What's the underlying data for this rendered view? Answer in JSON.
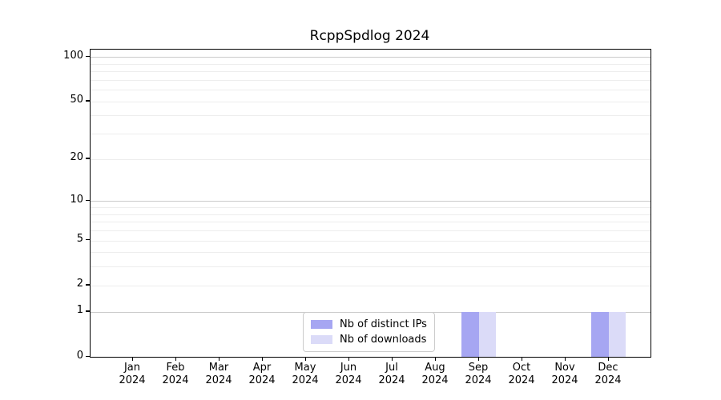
{
  "title": "RcppSpdlog 2024",
  "legend": {
    "items": [
      {
        "label": "Nb of distinct IPs",
        "color": "#a6a6f2"
      },
      {
        "label": "Nb of downloads",
        "color": "#dbdbf8"
      }
    ]
  },
  "axes": {
    "y_scale": "log1p",
    "y_tick_values": [
      0,
      1,
      2,
      5,
      10,
      20,
      50,
      100
    ],
    "y_tick_labels": [
      "0",
      "1",
      "2",
      "5",
      "10",
      "20",
      "50",
      "100"
    ],
    "y_grid_major_values": [
      1,
      10,
      100
    ],
    "y_grid_minor_values": [
      2,
      3,
      4,
      5,
      6,
      7,
      8,
      9,
      20,
      30,
      40,
      50,
      60,
      70,
      80,
      90
    ],
    "x_ticks": [
      {
        "line1": "Jan",
        "line2": "2024"
      },
      {
        "line1": "Feb",
        "line2": "2024"
      },
      {
        "line1": "Mar",
        "line2": "2024"
      },
      {
        "line1": "Apr",
        "line2": "2024"
      },
      {
        "line1": "May",
        "line2": "2024"
      },
      {
        "line1": "Jun",
        "line2": "2024"
      },
      {
        "line1": "Jul",
        "line2": "2024"
      },
      {
        "line1": "Aug",
        "line2": "2024"
      },
      {
        "line1": "Sep",
        "line2": "2024"
      },
      {
        "line1": "Oct",
        "line2": "2024"
      },
      {
        "line1": "Nov",
        "line2": "2024"
      },
      {
        "line1": "Dec",
        "line2": "2024"
      }
    ]
  },
  "colors": {
    "grid_major": "#cbcbcb",
    "grid_minor": "#ededed",
    "spine": "#000000",
    "background": "#ffffff"
  },
  "chart_data": {
    "type": "bar",
    "title": "RcppSpdlog 2024",
    "categories": [
      "Jan 2024",
      "Feb 2024",
      "Mar 2024",
      "Apr 2024",
      "May 2024",
      "Jun 2024",
      "Jul 2024",
      "Aug 2024",
      "Sep 2024",
      "Oct 2024",
      "Nov 2024",
      "Dec 2024"
    ],
    "series": [
      {
        "name": "Nb of distinct IPs",
        "color": "#a6a6f2",
        "values": [
          0,
          0,
          0,
          0,
          0,
          0,
          0,
          0,
          1,
          0,
          0,
          1
        ]
      },
      {
        "name": "Nb of downloads",
        "color": "#dbdbf8",
        "values": [
          0,
          0,
          0,
          0,
          0,
          0,
          0,
          0,
          1,
          0,
          0,
          1
        ]
      }
    ],
    "xlabel": "",
    "ylabel": "",
    "y_scale": "log1p",
    "ylim": [
      0,
      110
    ],
    "y_ticks": [
      0,
      1,
      2,
      5,
      10,
      20,
      50,
      100
    ],
    "grid": true,
    "legend_position": "lower center"
  }
}
